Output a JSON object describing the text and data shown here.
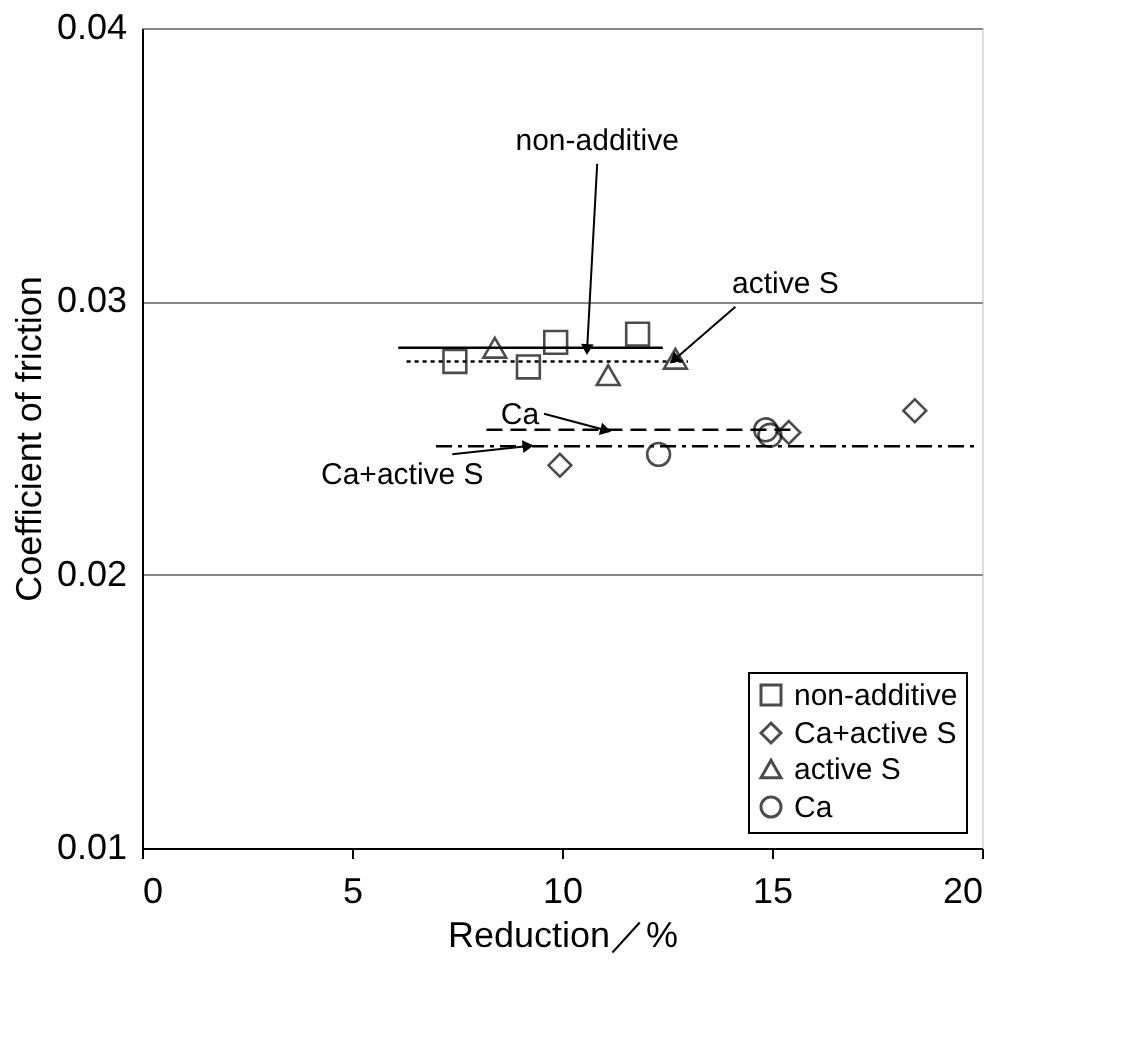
{
  "chart_data": {
    "type": "scatter",
    "xlabel": "Reduction／%",
    "ylabel": "Coefficient of friction",
    "xlim": [
      0,
      20
    ],
    "xticks": [
      0,
      5,
      10,
      15,
      20
    ],
    "ylim": [
      0.01,
      0.04
    ],
    "yticks": [
      0.01,
      0.02,
      0.03,
      0.04
    ],
    "grid": "y",
    "legend": "bottom right",
    "series": [
      {
        "name": "non-additive",
        "marker": "square",
        "color": "#000000",
        "x": [
          7.45,
          9.2,
          9.85,
          11.8
        ],
        "values": [
          0.0278,
          0.0276,
          0.0285,
          0.0288
        ]
      },
      {
        "name": "Ca+active S",
        "marker": "diamond",
        "color": "#000000",
        "x": [
          9.95,
          15.4,
          18.4
        ],
        "values": [
          0.024,
          0.0252,
          0.026
        ]
      },
      {
        "name": "active S",
        "marker": "triangle",
        "color": "#000000",
        "x": [
          8.4,
          11.1,
          12.7
        ],
        "values": [
          0.0283,
          0.0273,
          0.0279
        ]
      },
      {
        "name": "Ca",
        "marker": "circle",
        "color": "#000000",
        "x": [
          12.3,
          14.85,
          14.95
        ],
        "values": [
          0.0244,
          0.0253,
          0.0251
        ]
      },
      {
        "type": "line",
        "line_style": "solid",
        "color": "#000000",
        "x": [
          6.1,
          12.4
        ],
        "values": [
          0.0283,
          0.0283
        ]
      },
      {
        "type": "line",
        "line_style": "dotted",
        "color": "#000000",
        "x": [
          6.3,
          13.0
        ],
        "values": [
          0.0278,
          0.0278
        ]
      },
      {
        "type": "line",
        "line_style": "dashed",
        "color": "#000000",
        "x": [
          8.2,
          15.5
        ],
        "values": [
          0.0253,
          0.0253
        ]
      },
      {
        "type": "line",
        "line_style": "dashdot",
        "color": "#000000",
        "x": [
          7.0,
          19.9
        ],
        "values": [
          0.0247,
          0.0247
        ]
      }
    ],
    "annotations": [
      {
        "text": "non-additive",
        "x": 10.6,
        "y": 0.0283
      },
      {
        "text": "active S",
        "x": 12.7,
        "y": 0.0279
      },
      {
        "text": "Ca",
        "x": 11.0,
        "y": 0.0253
      },
      {
        "text": "Ca+active S",
        "x": 9.15,
        "y": 0.0247
      }
    ]
  }
}
